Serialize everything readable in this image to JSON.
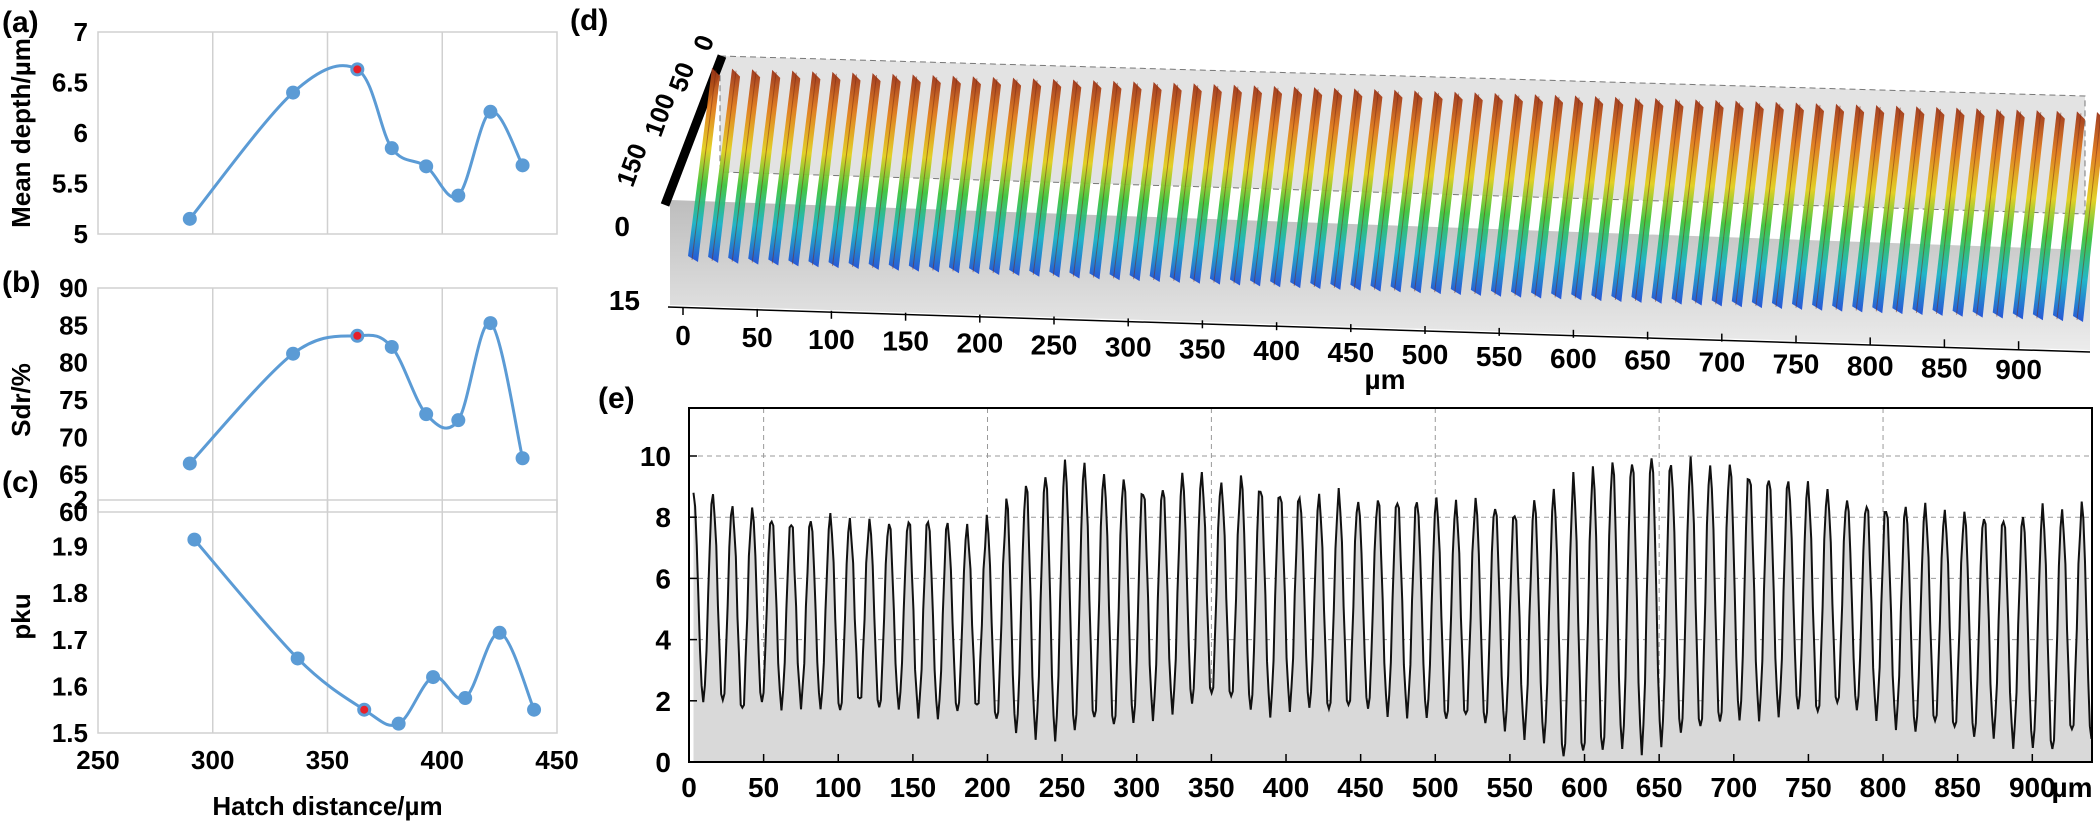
{
  "figure": {
    "panel_labels": [
      "(a)",
      "(b)",
      "(c)",
      "(d)",
      "(e)"
    ],
    "left_xlabel": "Hatch distance/µm"
  },
  "chart_data": [
    {
      "panel": "(a)",
      "type": "line",
      "ylabel": "Mean depth/µm",
      "xlim": [
        250,
        450
      ],
      "ylim": [
        5,
        7
      ],
      "xticks": [],
      "yticks": [
        "5",
        "5.5",
        "6",
        "6.5",
        "7"
      ],
      "x": [
        290,
        335,
        363,
        378,
        393,
        407,
        421,
        435
      ],
      "values": [
        5.15,
        6.4,
        6.63,
        5.85,
        5.67,
        5.38,
        6.21,
        5.68
      ],
      "highlight_index": 2,
      "grid": true,
      "color": "#5b9bd5",
      "highlight_color": "#e8202a"
    },
    {
      "panel": "(b)",
      "type": "line",
      "ylabel": "Sdr/%",
      "xlim": [
        250,
        450
      ],
      "ylim": [
        60,
        90
      ],
      "xticks": [],
      "yticks": [
        "60",
        "65",
        "70",
        "75",
        "80",
        "85",
        "90"
      ],
      "x": [
        290,
        335,
        363,
        378,
        393,
        407,
        421,
        435
      ],
      "values": [
        66.5,
        81.2,
        83.6,
        82.1,
        73.1,
        72.3,
        85.3,
        67.2
      ],
      "highlight_index": 2,
      "grid": true,
      "color": "#5b9bd5",
      "highlight_color": "#e8202a"
    },
    {
      "panel": "(c)",
      "type": "line",
      "ylabel": "pku",
      "xlabel": "Hatch distance/µm",
      "xlim": [
        250,
        450
      ],
      "ylim": [
        1.5,
        2
      ],
      "xticks": [
        "250",
        "300",
        "350",
        "400",
        "450"
      ],
      "yticks": [
        "1.5",
        "1.6",
        "1.7",
        "1.8",
        "1.9",
        "2"
      ],
      "x": [
        292,
        337,
        366,
        381,
        396,
        410,
        425,
        440
      ],
      "values": [
        1.915,
        1.66,
        1.55,
        1.52,
        1.62,
        1.575,
        1.715,
        1.55
      ],
      "highlight_index": 2,
      "grid": true,
      "color": "#5b9bd5",
      "highlight_color": "#e8202a"
    },
    {
      "panel": "(d)",
      "type": "surface-3d",
      "xlabel": "µm",
      "xticks": [
        "0",
        "50",
        "100",
        "150",
        "200",
        "250",
        "300",
        "350",
        "400",
        "450",
        "500",
        "550",
        "600",
        "650",
        "700",
        "750",
        "800",
        "850",
        "900"
      ],
      "yticks": [
        "0",
        "15"
      ],
      "zticks": [
        "150",
        "100",
        "50",
        "0"
      ],
      "ridge_count": 70,
      "colormap": [
        "#1f4fd6",
        "#18b4c8",
        "#3cc43c",
        "#e6d21e",
        "#e07a1a",
        "#a83a1a"
      ]
    },
    {
      "panel": "(e)",
      "type": "line",
      "xlabel": "µm",
      "xlim": [
        0,
        940
      ],
      "ylim": [
        0,
        10
      ],
      "xticks": [
        "0",
        "50",
        "100",
        "150",
        "200",
        "250",
        "300",
        "350",
        "400",
        "450",
        "500",
        "550",
        "600",
        "650",
        "700",
        "750",
        "800",
        "850",
        "900"
      ],
      "yticks": [
        "0",
        "2",
        "4",
        "6",
        "8",
        "10"
      ],
      "period": 13.1,
      "peaks": [
        8.8,
        8.6,
        8.2,
        8.3,
        8.0,
        7.9,
        7.9,
        8.0,
        7.8,
        7.9,
        7.9,
        8.0,
        7.9,
        7.7,
        7.6,
        8.0,
        8.7,
        9.2,
        9.4,
        9.8,
        9.6,
        9.3,
        9.3,
        8.9,
        9.0,
        9.4,
        9.3,
        9.0,
        9.4,
        9.0,
        8.8,
        8.6,
        8.6,
        8.8,
        8.5,
        8.7,
        8.6,
        8.5,
        8.5,
        8.4,
        8.6,
        8.4,
        8.2,
        8.6,
        8.8,
        9.3,
        9.6,
        9.9,
        9.9,
        10.0,
        9.6,
        9.8,
        9.6,
        9.8,
        9.4,
        9.3,
        9.1,
        9.0,
        8.8,
        8.6,
        8.5,
        8.3,
        8.3,
        8.3,
        8.1,
        8.2,
        8.1,
        8.0,
        8.0,
        8.3,
        8.1,
        8.5,
        8.3,
        9.0
      ],
      "troughs": [
        2.0,
        1.9,
        1.6,
        1.9,
        1.8,
        1.9,
        1.8,
        1.6,
        1.9,
        1.7,
        1.8,
        1.6,
        1.5,
        1.6,
        1.7,
        1.3,
        1.0,
        0.9,
        0.8,
        1.0,
        1.3,
        1.1,
        1.3,
        1.5,
        1.7,
        1.9,
        2.1,
        2.0,
        1.7,
        1.6,
        1.8,
        1.8,
        1.6,
        1.7,
        1.7,
        1.6,
        1.6,
        1.5,
        1.3,
        1.4,
        1.2,
        1.1,
        0.9,
        0.7,
        0.1,
        0.2,
        0.3,
        0.5,
        0.4,
        0.6,
        0.9,
        1.0,
        1.2,
        1.4,
        1.5,
        1.6,
        1.7,
        1.5,
        1.8,
        1.7,
        1.5,
        1.2,
        1.0,
        1.2,
        1.0,
        0.8,
        0.9,
        0.6,
        0.5,
        0.3,
        0.9,
        0.7,
        0.8,
        0.9
      ],
      "fill": "#d9d9d9",
      "line": "#111111"
    }
  ]
}
